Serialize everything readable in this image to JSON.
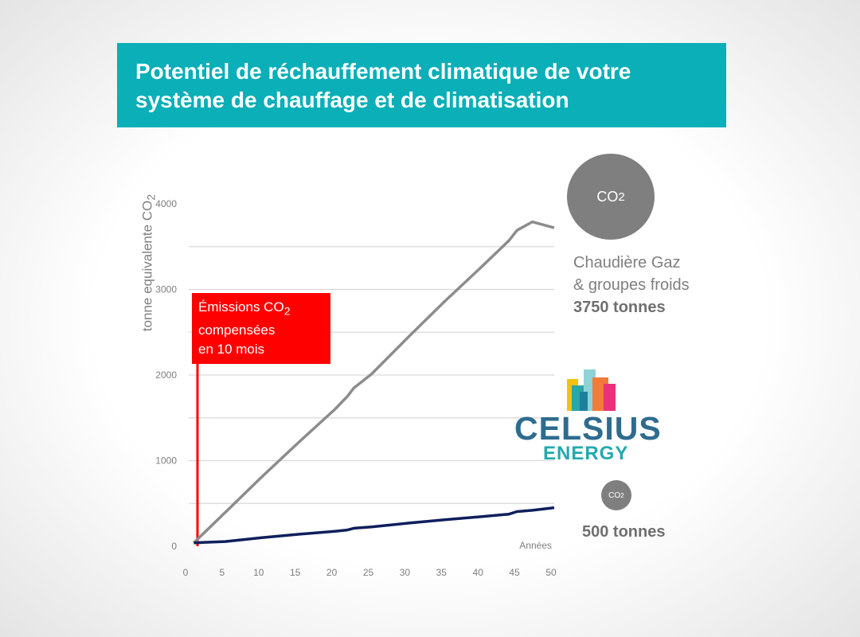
{
  "banner": {
    "line1": "Potentiel de réchauffement climatique de votre",
    "line2": "système de chauffage et de climatisation"
  },
  "annotation": {
    "line1_pre": "Émissions CO",
    "line1_sub": "2",
    "line2": "compensées",
    "line3": "en 10 mois"
  },
  "co2_bubble": {
    "text": "CO",
    "sub": "2"
  },
  "gas_system": {
    "line1": "Chaudière Gaz",
    "line2": "& groupes froids",
    "value": "3750 tonnes"
  },
  "geothermal_system": {
    "value": "500 tonnes"
  },
  "logo": {
    "word1": "CELSIUS",
    "word2": "ENERGY"
  },
  "colors": {
    "banner": "#0aafb8",
    "gas_series": "#8c8c8c",
    "celsius_series": "#0f1f5c",
    "annotation": "#ff0000",
    "grid": "#d9d9d9"
  },
  "chart_data": {
    "type": "line",
    "ylabel_main": "tonne equivalente CO",
    "ylabel_sub": "2",
    "xlabel": "Années",
    "xlim": [
      0,
      50
    ],
    "ylim": [
      0,
      4000
    ],
    "x_ticks": [
      0,
      5,
      10,
      15,
      20,
      25,
      30,
      35,
      40,
      45,
      50
    ],
    "y_ticks": [
      0,
      1000,
      2000,
      3000,
      4000
    ],
    "grid": true,
    "series": [
      {
        "x": [
          0.7,
          5,
          10,
          15,
          20,
          21.7,
          22.6,
          25,
          30,
          35,
          40,
          43.8,
          44.9,
          47,
          50
        ],
        "y": [
          40,
          395,
          810,
          1210,
          1600,
          1750,
          1850,
          2010,
          2440,
          2860,
          3260,
          3570,
          3690,
          3790,
          3720
        ]
      },
      {
        "x": [
          0.7,
          5,
          10,
          15,
          20,
          21.7,
          22.6,
          25,
          30,
          35,
          40,
          43.8,
          44.9,
          47,
          50
        ],
        "y": [
          40,
          55,
          100,
          140,
          175,
          190,
          210,
          225,
          270,
          310,
          345,
          375,
          405,
          420,
          450
        ]
      }
    ],
    "vertical_marker_x": 1.2
  }
}
